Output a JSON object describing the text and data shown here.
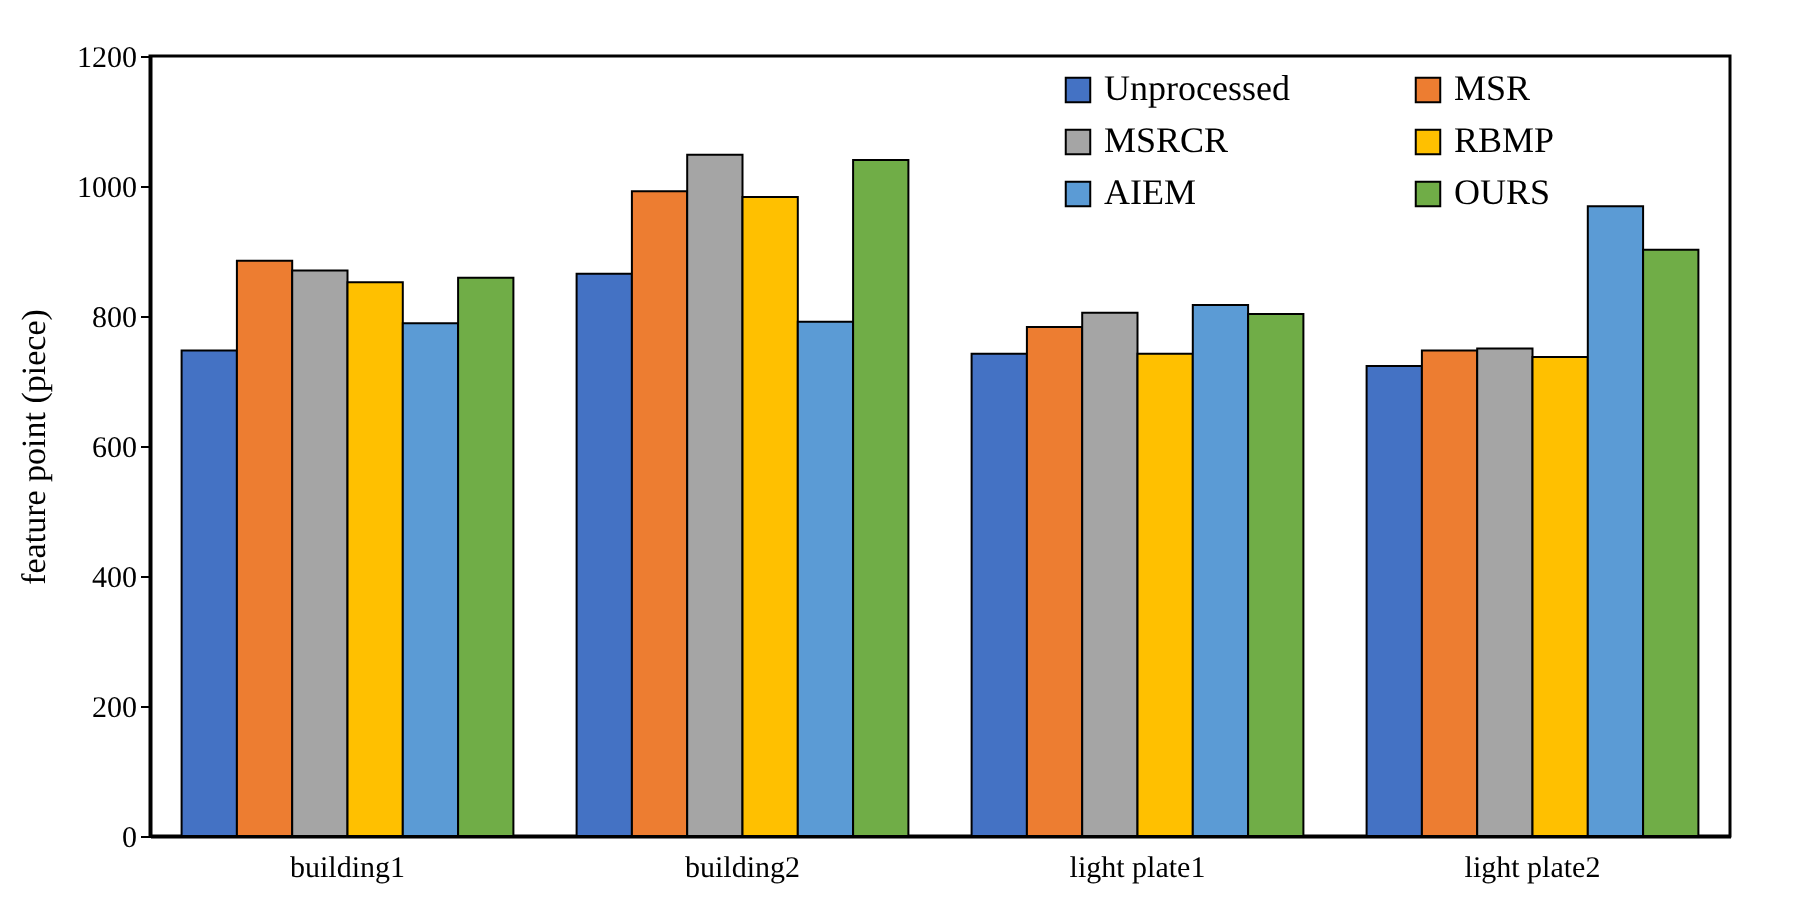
{
  "chart_data": {
    "type": "bar",
    "ylabel": "feature point (piece)",
    "categories": [
      "building1",
      "building2",
      "light plate1",
      "light plate2"
    ],
    "series": [
      {
        "name": "Unprocessed",
        "color": "#4472c4",
        "values": [
          747,
          865,
          742,
          723
        ]
      },
      {
        "name": "MSR",
        "color": "#ed7d31",
        "values": [
          885,
          992,
          783,
          747
        ]
      },
      {
        "name": "MSRCR",
        "color": "#a5a5a5",
        "values": [
          870,
          1048,
          805,
          750
        ]
      },
      {
        "name": "RBMP",
        "color": "#ffc000",
        "values": [
          852,
          983,
          742,
          737
        ]
      },
      {
        "name": "AIEM",
        "color": "#5b9bd5",
        "values": [
          789,
          791,
          817,
          969
        ]
      },
      {
        "name": "OURS",
        "color": "#70ad47",
        "values": [
          859,
          1040,
          803,
          902
        ]
      }
    ],
    "ylim": [
      0,
      1200
    ],
    "yticks": [
      0,
      200,
      400,
      600,
      800,
      1000,
      1200
    ],
    "grid": false,
    "legend": "top right"
  }
}
